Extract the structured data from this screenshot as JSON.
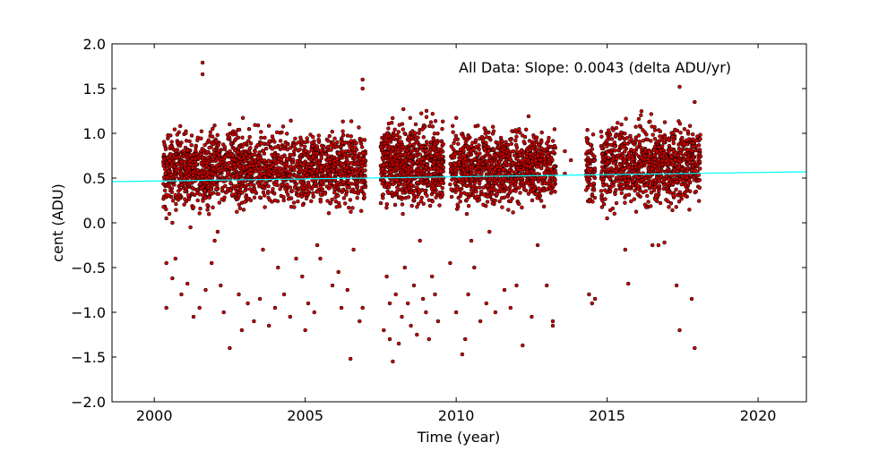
{
  "chart_data": {
    "type": "scatter",
    "title": "",
    "annotation": "All Data: Slope:  0.0043 (delta ADU/yr)",
    "xlabel": "Time (year)",
    "ylabel": "cent (ADU)",
    "xlim": [
      1998.6,
      2021.6
    ],
    "ylim": [
      -2.0,
      2.0
    ],
    "xticks": [
      2000,
      2005,
      2010,
      2015,
      2020
    ],
    "xtick_labels": [
      "2000",
      "2005",
      "2010",
      "2015",
      "2020"
    ],
    "yticks": [
      -2.0,
      -1.5,
      -1.0,
      -0.5,
      0.0,
      0.5,
      1.0,
      1.5,
      2.0
    ],
    "ytick_labels": [
      "−2.0",
      "−1.5",
      "−1.0",
      "−0.5",
      "0.0",
      "0.5",
      "1.0",
      "1.5",
      "2.0"
    ],
    "grid": false,
    "legend": "none",
    "marker_color": "#cc0000",
    "marker_edge_color": "#000000",
    "fit_color": "#00ffff",
    "fit_line": {
      "slope": 0.0043,
      "x": [
        1998.6,
        2021.6
      ],
      "y": [
        0.46,
        0.57
      ]
    },
    "clusters": [
      {
        "x": [
          2000.3,
          2001.9
        ],
        "y_center": 0.58,
        "y_spread": 0.45,
        "count": 520
      },
      {
        "x": [
          2001.9,
          2005.5
        ],
        "y_center": 0.62,
        "y_spread": 0.45,
        "count": 950
      },
      {
        "x": [
          2005.5,
          2007.0
        ],
        "y_center": 0.6,
        "y_spread": 0.45,
        "count": 430
      },
      {
        "x": [
          2007.5,
          2009.6
        ],
        "y_center": 0.65,
        "y_spread": 0.5,
        "count": 750
      },
      {
        "x": [
          2009.8,
          2013.3
        ],
        "y_center": 0.62,
        "y_spread": 0.45,
        "count": 1050
      },
      {
        "x": [
          2014.3,
          2014.6
        ],
        "y_center": 0.6,
        "y_spread": 0.45,
        "count": 80
      },
      {
        "x": [
          2014.8,
          2018.1
        ],
        "y_center": 0.65,
        "y_spread": 0.5,
        "count": 1000
      }
    ],
    "outliers": [
      {
        "x": 2001.6,
        "y": 1.79
      },
      {
        "x": 2001.6,
        "y": 1.66
      },
      {
        "x": 2006.9,
        "y": 1.6
      },
      {
        "x": 2006.9,
        "y": 1.5
      },
      {
        "x": 2017.4,
        "y": 1.52
      },
      {
        "x": 2017.9,
        "y": 1.35
      },
      {
        "x": 2013.6,
        "y": 0.8
      },
      {
        "x": 2013.6,
        "y": 0.55
      },
      {
        "x": 2013.8,
        "y": 0.7
      },
      {
        "x": 2000.4,
        "y": -0.45
      },
      {
        "x": 2000.4,
        "y": -0.95
      },
      {
        "x": 2000.6,
        "y": -0.62
      },
      {
        "x": 2000.7,
        "y": -0.4
      },
      {
        "x": 2000.9,
        "y": -0.8
      },
      {
        "x": 2001.1,
        "y": -0.68
      },
      {
        "x": 2001.3,
        "y": -1.05
      },
      {
        "x": 2001.5,
        "y": -0.95
      },
      {
        "x": 2001.7,
        "y": -0.75
      },
      {
        "x": 2001.9,
        "y": -0.45
      },
      {
        "x": 2002.0,
        "y": -0.2
      },
      {
        "x": 2002.2,
        "y": -0.7
      },
      {
        "x": 2002.3,
        "y": -1.0
      },
      {
        "x": 2002.5,
        "y": -1.4
      },
      {
        "x": 2002.8,
        "y": -0.8
      },
      {
        "x": 2002.9,
        "y": -1.2
      },
      {
        "x": 2003.1,
        "y": -0.9
      },
      {
        "x": 2003.3,
        "y": -1.1
      },
      {
        "x": 2003.5,
        "y": -0.85
      },
      {
        "x": 2003.6,
        "y": -0.3
      },
      {
        "x": 2003.8,
        "y": -1.15
      },
      {
        "x": 2004.0,
        "y": -0.95
      },
      {
        "x": 2004.1,
        "y": -0.5
      },
      {
        "x": 2004.3,
        "y": -0.8
      },
      {
        "x": 2004.5,
        "y": -1.05
      },
      {
        "x": 2004.7,
        "y": -0.4
      },
      {
        "x": 2004.9,
        "y": -0.6
      },
      {
        "x": 2005.0,
        "y": -1.2
      },
      {
        "x": 2005.1,
        "y": -0.9
      },
      {
        "x": 2005.3,
        "y": -1.0
      },
      {
        "x": 2005.4,
        "y": -0.25
      },
      {
        "x": 2005.5,
        "y": -0.4
      },
      {
        "x": 2005.9,
        "y": -0.7
      },
      {
        "x": 2006.1,
        "y": -0.55
      },
      {
        "x": 2006.2,
        "y": -0.95
      },
      {
        "x": 2006.4,
        "y": -0.75
      },
      {
        "x": 2006.5,
        "y": -1.52
      },
      {
        "x": 2006.6,
        "y": -0.3
      },
      {
        "x": 2006.8,
        "y": -1.1
      },
      {
        "x": 2006.9,
        "y": -0.95
      },
      {
        "x": 2007.6,
        "y": -1.2
      },
      {
        "x": 2007.7,
        "y": -0.6
      },
      {
        "x": 2007.8,
        "y": -0.9
      },
      {
        "x": 2007.8,
        "y": -1.3
      },
      {
        "x": 2007.9,
        "y": -1.55
      },
      {
        "x": 2008.0,
        "y": -0.8
      },
      {
        "x": 2008.1,
        "y": -1.35
      },
      {
        "x": 2008.2,
        "y": -1.05
      },
      {
        "x": 2008.3,
        "y": -0.5
      },
      {
        "x": 2008.4,
        "y": -0.9
      },
      {
        "x": 2008.5,
        "y": -1.15
      },
      {
        "x": 2008.6,
        "y": -0.7
      },
      {
        "x": 2008.7,
        "y": -1.25
      },
      {
        "x": 2008.8,
        "y": -0.2
      },
      {
        "x": 2008.9,
        "y": -0.85
      },
      {
        "x": 2009.0,
        "y": -1.0
      },
      {
        "x": 2009.1,
        "y": -1.3
      },
      {
        "x": 2009.2,
        "y": -0.6
      },
      {
        "x": 2009.3,
        "y": -0.8
      },
      {
        "x": 2009.4,
        "y": -1.1
      },
      {
        "x": 2009.8,
        "y": -0.45
      },
      {
        "x": 2010.0,
        "y": -1.0
      },
      {
        "x": 2010.2,
        "y": -1.47
      },
      {
        "x": 2010.3,
        "y": -1.3
      },
      {
        "x": 2010.4,
        "y": -0.8
      },
      {
        "x": 2010.5,
        "y": -0.2
      },
      {
        "x": 2010.6,
        "y": -0.5
      },
      {
        "x": 2010.8,
        "y": -1.1
      },
      {
        "x": 2011.0,
        "y": -0.9
      },
      {
        "x": 2011.1,
        "y": -0.1
      },
      {
        "x": 2011.3,
        "y": -1.0
      },
      {
        "x": 2011.6,
        "y": -0.75
      },
      {
        "x": 2011.8,
        "y": -0.95
      },
      {
        "x": 2012.0,
        "y": -0.7
      },
      {
        "x": 2012.2,
        "y": -1.37
      },
      {
        "x": 2012.5,
        "y": -1.05
      },
      {
        "x": 2012.7,
        "y": -0.25
      },
      {
        "x": 2013.0,
        "y": -0.7
      },
      {
        "x": 2013.2,
        "y": -1.1
      },
      {
        "x": 2013.2,
        "y": -1.15
      },
      {
        "x": 2014.4,
        "y": -0.8
      },
      {
        "x": 2014.5,
        "y": -0.9
      },
      {
        "x": 2014.6,
        "y": -0.85
      },
      {
        "x": 2015.6,
        "y": -0.3
      },
      {
        "x": 2015.7,
        "y": -0.68
      },
      {
        "x": 2016.5,
        "y": -0.25
      },
      {
        "x": 2016.7,
        "y": -0.25
      },
      {
        "x": 2017.3,
        "y": -0.7
      },
      {
        "x": 2017.4,
        "y": -1.2
      },
      {
        "x": 2017.8,
        "y": -0.85
      },
      {
        "x": 2017.9,
        "y": -1.4
      },
      {
        "x": 2000.4,
        "y": 0.05
      },
      {
        "x": 2000.5,
        "y": 0.1
      },
      {
        "x": 2000.6,
        "y": 0.0
      },
      {
        "x": 2001.2,
        "y": -0.05
      },
      {
        "x": 2002.1,
        "y": -0.1
      },
      {
        "x": 2015.0,
        "y": 0.05
      },
      {
        "x": 2016.9,
        "y": -0.22
      }
    ]
  }
}
